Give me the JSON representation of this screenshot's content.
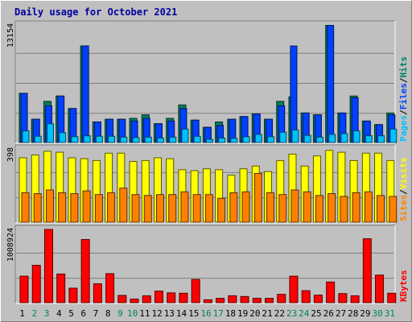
{
  "chart_data": {
    "type": "bar",
    "title": "Daily usage for October 2021",
    "categories": [
      "1",
      "2",
      "3",
      "4",
      "5",
      "6",
      "7",
      "8",
      "9",
      "10",
      "11",
      "12",
      "13",
      "14",
      "15",
      "16",
      "17",
      "18",
      "19",
      "20",
      "21",
      "22",
      "23",
      "24",
      "25",
      "26",
      "27",
      "28",
      "29",
      "30",
      "31"
    ],
    "weekend_days": [
      "2",
      "3",
      "9",
      "10",
      "16",
      "17",
      "23",
      "24",
      "30",
      "31"
    ],
    "colors": {
      "hits": "#00805c",
      "files": "#0040ff",
      "pages": "#00c0ff",
      "visits": "#ffff00",
      "sites": "#ff8000",
      "kbytes": "#ff0000",
      "weekday_label": "#000000",
      "weekend_label": "#00805c",
      "title": "#0000a0"
    },
    "panels": [
      {
        "name": "hits-files-pages",
        "ymax_label": "13154",
        "ymax": 13154,
        "legend": [
          {
            "text": "Pages",
            "color": "#00c0ff"
          },
          {
            "text": "Files",
            "color": "#0040ff"
          },
          {
            "text": "Hits",
            "color": "#00805c"
          }
        ],
        "series": [
          {
            "name": "Hits",
            "color": "#00805c",
            "values": [
              5500,
              2600,
              4600,
              5200,
              3800,
              10800,
              2300,
              2600,
              2600,
              2700,
              3100,
              2100,
              2700,
              4200,
              2500,
              1700,
              2300,
              2600,
              2900,
              3200,
              2600,
              4600,
              5100,
              3300,
              3100,
              13100,
              3300,
              5200,
              2400,
              2000,
              3300
            ]
          },
          {
            "name": "Files",
            "color": "#0040ff",
            "values": [
              5500,
              2600,
              4100,
              5200,
              3800,
              10800,
              2300,
              2600,
              2600,
              2400,
              2700,
              2100,
              2400,
              3800,
              2500,
              1700,
              1900,
              2600,
              2900,
              3200,
              2600,
              4100,
              10800,
              3300,
              3100,
              13100,
              3300,
              5000,
              2400,
              2000,
              3100
            ]
          },
          {
            "name": "Pages",
            "color": "#00c0ff",
            "values": [
              1300,
              700,
              2100,
              1100,
              650,
              750,
              700,
              700,
              600,
              550,
              600,
              500,
              600,
              1500,
              700,
              350,
              500,
              450,
              650,
              900,
              650,
              1150,
              1400,
              800,
              600,
              900,
              1000,
              1300,
              750,
              750,
              1500
            ]
          }
        ]
      },
      {
        "name": "visits-sites",
        "ymax_label": "398",
        "ymax": 398,
        "legend": [
          {
            "text": "Sites",
            "color": "#ff8000"
          },
          {
            "text": "Visits",
            "color": "#ffff00"
          }
        ],
        "series": [
          {
            "name": "Visits",
            "color": "#ffff00",
            "values": [
              350,
              365,
              385,
              380,
              350,
              345,
              335,
              375,
              375,
              330,
              335,
              350,
              345,
              285,
              280,
              290,
              285,
              255,
              290,
              305,
              275,
              335,
              370,
              305,
              360,
              390,
              380,
              335,
              375,
              375,
              335
            ]
          },
          {
            "name": "Sites",
            "color": "#ff8000",
            "values": [
              160,
              155,
              175,
              160,
              155,
              170,
              150,
              160,
              185,
              150,
              145,
              150,
              150,
              165,
              150,
              150,
              130,
              160,
              165,
              265,
              160,
              150,
              175,
              165,
              145,
              155,
              140,
              160,
              165,
              145,
              140
            ]
          }
        ]
      },
      {
        "name": "kbytes",
        "ymax_label": "1008924",
        "ymax": 1008924,
        "legend": [
          {
            "text": "KBytes",
            "color": "#ff0000"
          }
        ],
        "series": [
          {
            "name": "KBytes",
            "color": "#ff0000",
            "values": [
              365000,
              515000,
              1008924,
              395000,
              200000,
              870000,
              260000,
              400000,
              100000,
              50000,
              95000,
              160000,
              135000,
              130000,
              320000,
              40000,
              60000,
              95000,
              85000,
              60000,
              60000,
              115000,
              365000,
              165000,
              105000,
              285000,
              125000,
              95000,
              880000,
              380000,
              130000
            ]
          }
        ]
      }
    ]
  }
}
